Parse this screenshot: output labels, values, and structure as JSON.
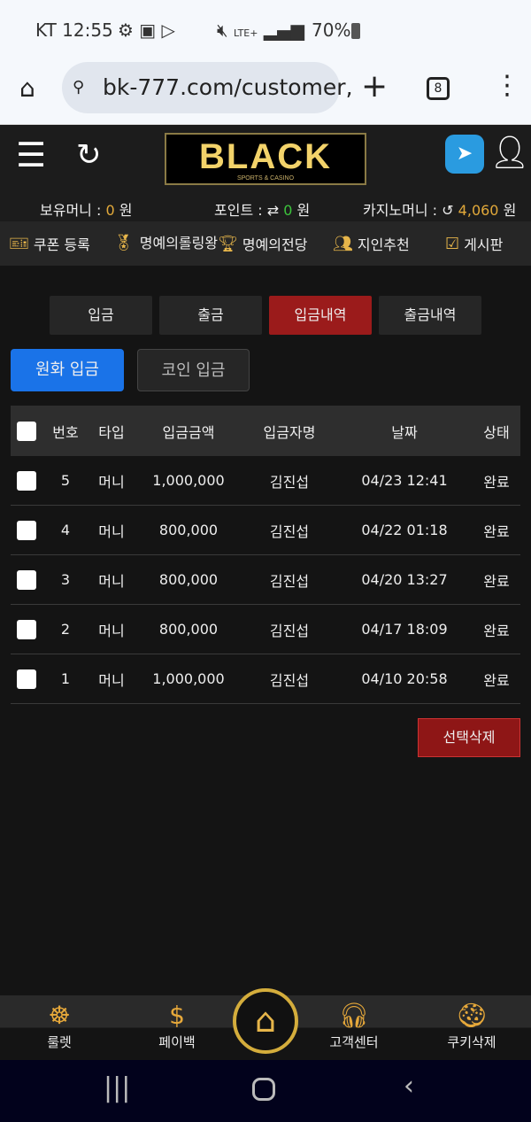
{
  "status_bar": {
    "carrier_time": "KT 12:55",
    "battery": "70%",
    "network": "LTE+"
  },
  "browser": {
    "url": "bk-777.com/customer,",
    "tab_count": "8"
  },
  "header": {
    "logo": "BLACK",
    "logo_sub": "SPORTS & CASINO"
  },
  "balances": {
    "money_label": "보유머니 :",
    "money_value": "0",
    "point_label": "포인트 :",
    "point_value": "0",
    "casino_label": "카지노머니 :",
    "casino_value": "4,060",
    "unit": "원"
  },
  "menu": [
    {
      "label": "쿠폰 등록",
      "icon": "coupon-icon"
    },
    {
      "label": "명예의롤링왕",
      "icon": "medal-icon"
    },
    {
      "label": "명예의전당",
      "icon": "trophy-icon"
    },
    {
      "label": "지인추천",
      "icon": "people-icon"
    },
    {
      "label": "게시판",
      "icon": "board-icon"
    }
  ],
  "tabs": [
    {
      "label": "입금",
      "active": false
    },
    {
      "label": "출금",
      "active": false
    },
    {
      "label": "입금내역",
      "active": true
    },
    {
      "label": "출금내역",
      "active": false
    }
  ],
  "subtabs": [
    {
      "label": "원화 입금",
      "active": true
    },
    {
      "label": "코인 입금",
      "active": false
    }
  ],
  "table": {
    "headers": [
      "번호",
      "타입",
      "입금금액",
      "입금자명",
      "날짜",
      "상태"
    ],
    "rows": [
      [
        "5",
        "머니",
        "1,000,000",
        "김진섭",
        "04/23 12:41",
        "완료"
      ],
      [
        "4",
        "머니",
        "800,000",
        "김진섭",
        "04/22 01:18",
        "완료"
      ],
      [
        "3",
        "머니",
        "800,000",
        "김진섭",
        "04/20 13:27",
        "완료"
      ],
      [
        "2",
        "머니",
        "800,000",
        "김진섭",
        "04/17 18:09",
        "완료"
      ],
      [
        "1",
        "머니",
        "1,000,000",
        "김진섭",
        "04/10 20:58",
        "완료"
      ]
    ]
  },
  "delete_label": "선택삭제",
  "bottom_nav": [
    {
      "label": "룰렛",
      "icon": "roulette-icon"
    },
    {
      "label": "페이백",
      "icon": "payback-icon"
    },
    {
      "label": "",
      "icon": "home-icon"
    },
    {
      "label": "고객센터",
      "icon": "support-icon"
    },
    {
      "label": "쿠키삭제",
      "icon": "cookie-icon"
    }
  ],
  "colors": {
    "accent_red": "#9b1b1b",
    "accent_blue": "#1a73e8",
    "gold": "#e2a93a",
    "green": "#3cc43c"
  }
}
